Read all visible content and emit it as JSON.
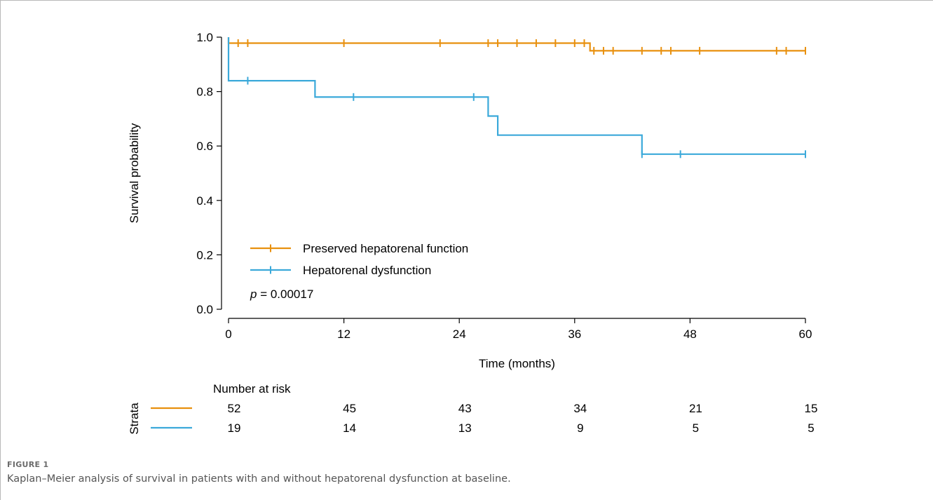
{
  "chart_data": {
    "type": "line",
    "subtype": "kaplan-meier",
    "xlabel": "Time (months)",
    "ylabel": "Survival probability",
    "xlim": [
      0,
      60
    ],
    "ylim": [
      0,
      1
    ],
    "xticks": [
      0,
      12,
      24,
      36,
      48,
      60
    ],
    "yticks": [
      0.0,
      0.2,
      0.4,
      0.6,
      0.8,
      1.0
    ],
    "ytick_labels": [
      "0.0",
      "0.2",
      "0.4",
      "0.6",
      "0.8",
      "1.0"
    ],
    "grid": false,
    "legend_placement": "bottom-left",
    "pvalue": {
      "prefix": "p",
      "text": " = 0.00017"
    },
    "series": [
      {
        "name": "Preserved hepatorenal function",
        "color": "#E8900E",
        "steps": [
          [
            0,
            1.0
          ],
          [
            0,
            0.978
          ],
          [
            37.6,
            0.978
          ],
          [
            37.6,
            0.95
          ],
          [
            60,
            0.95
          ]
        ],
        "censors": [
          [
            1,
            0.978
          ],
          [
            2,
            0.978
          ],
          [
            12,
            0.978
          ],
          [
            22,
            0.978
          ],
          [
            27,
            0.978
          ],
          [
            28,
            0.978
          ],
          [
            30,
            0.978
          ],
          [
            32,
            0.978
          ],
          [
            34,
            0.978
          ],
          [
            36,
            0.978
          ],
          [
            37,
            0.978
          ],
          [
            38,
            0.95
          ],
          [
            39,
            0.95
          ],
          [
            40,
            0.95
          ],
          [
            43,
            0.95
          ],
          [
            45,
            0.95
          ],
          [
            46,
            0.95
          ],
          [
            49,
            0.95
          ],
          [
            57,
            0.95
          ],
          [
            58,
            0.95
          ],
          [
            60,
            0.95
          ]
        ]
      },
      {
        "name": "Hepatorenal dysfunction",
        "color": "#3BA9DA",
        "steps": [
          [
            0,
            1.0
          ],
          [
            0,
            0.84
          ],
          [
            9,
            0.84
          ],
          [
            9,
            0.78
          ],
          [
            27,
            0.78
          ],
          [
            27,
            0.71
          ],
          [
            28,
            0.71
          ],
          [
            28,
            0.64
          ],
          [
            43,
            0.64
          ],
          [
            43,
            0.57
          ],
          [
            60,
            0.57
          ]
        ],
        "censors": [
          [
            2,
            0.84
          ],
          [
            13,
            0.78
          ],
          [
            25.5,
            0.78
          ],
          [
            43,
            0.57
          ],
          [
            47,
            0.57
          ],
          [
            60,
            0.57
          ]
        ]
      }
    ],
    "risk_table": {
      "title": "Number at risk",
      "ylabel": "Strata",
      "times": [
        0,
        12,
        24,
        36,
        48,
        60
      ],
      "rows": [
        {
          "color": "#E8900E",
          "values": [
            "52",
            "45",
            "43",
            "34",
            "21",
            "15"
          ]
        },
        {
          "color": "#3BA9DA",
          "values": [
            "19",
            "14",
            "13",
            "9",
            "5",
            "5"
          ]
        }
      ]
    }
  },
  "caption": {
    "label": "FIGURE 1",
    "text": "Kaplan–Meier analysis of survival in patients with and without hepatorenal dysfunction at baseline."
  }
}
